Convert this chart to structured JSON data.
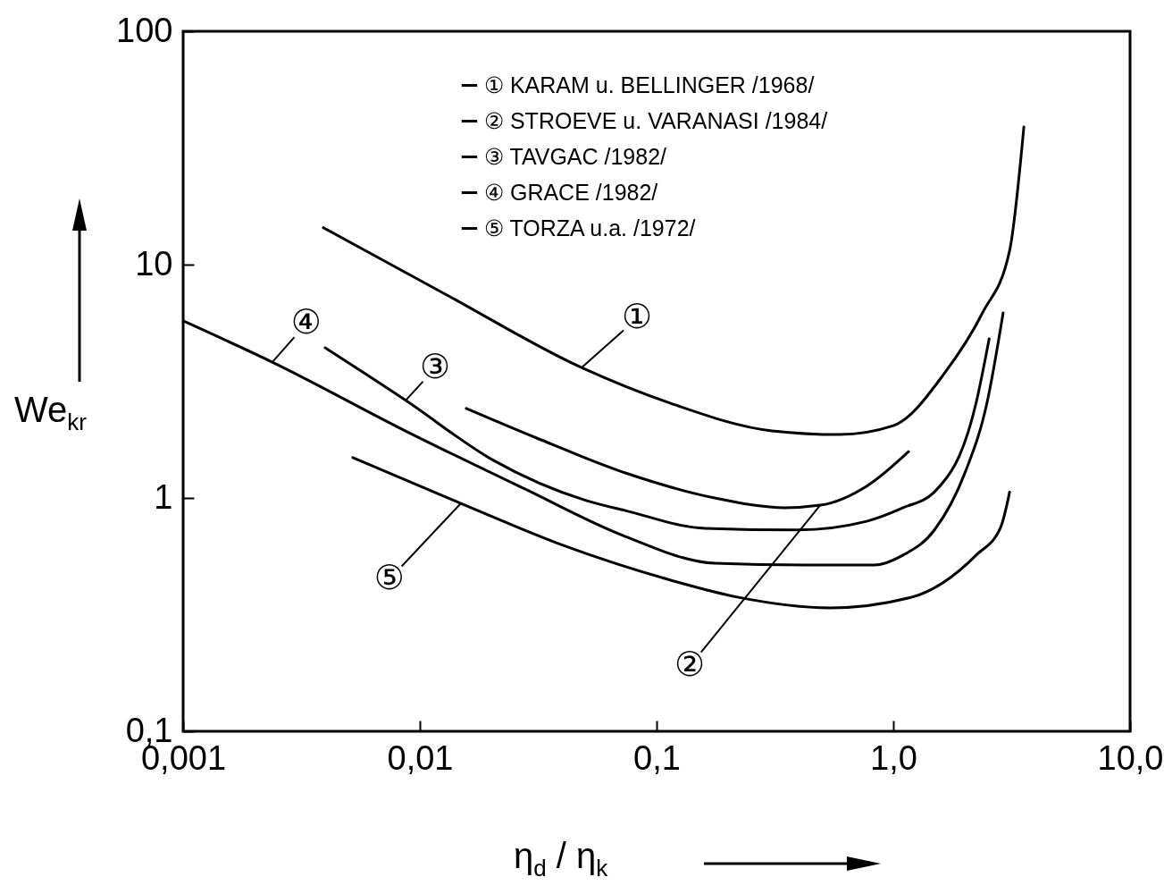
{
  "chart_data": {
    "type": "line",
    "xlabel": "η$_{d}$ / η$_{k}$",
    "ylabel": "We$_{kr}$",
    "log": "xy",
    "grid": false,
    "legend": "top right",
    "line_style": "solid",
    "marker": "none",
    "xlim": [
      0.001,
      10
    ],
    "xticks": [
      {
        "value": 0.001,
        "label": "0,001"
      },
      {
        "value": 0.01,
        "label": "0,01"
      },
      {
        "value": 0.1,
        "label": "0,1"
      },
      {
        "value": 1,
        "label": "1,0"
      },
      {
        "value": 10,
        "label": "10,0"
      }
    ],
    "ylim": [
      0.1,
      100
    ],
    "yticks": [
      {
        "value": 0.1,
        "label": "0,1"
      },
      1,
      10,
      100
    ],
    "series": [
      {
        "name": "① KARAM u. BELLINGER /1968/",
        "color": "#000000",
        "x": [
          0.00391,
          0.013,
          0.0482,
          0.114,
          0.307,
          0.594,
          1.0,
          1.64,
          2.38,
          3.1,
          3.56
        ],
        "values": [
          14.4,
          7.41,
          3.62,
          2.55,
          1.94,
          1.87,
          2.04,
          3.41,
          6.21,
          11.5,
          38.9
        ]
      },
      {
        "name": "② STROEVE u. VARANASI /1984/",
        "color": "#000000",
        "x": [
          0.0157,
          0.031,
          0.0738,
          0.176,
          0.349,
          0.491,
          0.778,
          1.16
        ],
        "values": [
          2.42,
          1.81,
          1.28,
          1.0,
          0.908,
          0.931,
          1.13,
          1.58
        ]
      },
      {
        "name": "③ TAVGAC /1982/",
        "color": "#000000",
        "x": [
          0.00398,
          0.00871,
          0.0202,
          0.0504,
          0.0738,
          0.16,
          0.395,
          0.771,
          1.1,
          1.49,
          2.24,
          2.54
        ],
        "values": [
          4.4,
          2.62,
          1.46,
          0.975,
          0.883,
          0.741,
          0.729,
          0.794,
          0.908,
          1.06,
          2.57,
          4.81
        ]
      },
      {
        "name": "④ GRACE /1982/",
        "color": "#000000",
        "x": [
          0.001,
          0.00238,
          0.00885,
          0.0274,
          0.0738,
          0.176,
          0.42,
          0.834,
          1.1,
          1.49,
          2.0,
          2.49,
          2.91
        ],
        "values": [
          5.74,
          3.82,
          1.92,
          1.1,
          0.684,
          0.525,
          0.516,
          0.516,
          0.569,
          0.728,
          1.27,
          2.57,
          6.21
        ]
      },
      {
        "name": "⑤ TORZA u.a. /1972/",
        "color": "#000000",
        "x": [
          0.00521,
          0.0149,
          0.0402,
          0.114,
          0.219,
          0.54,
          1.2,
          2.24,
          2.84,
          3.1
        ],
        "values": [
          1.49,
          0.948,
          0.627,
          0.445,
          0.376,
          0.338,
          0.376,
          0.569,
          0.748,
          1.06
        ]
      }
    ],
    "annotations": [
      {
        "text": "①",
        "x": 0.0482,
        "y": 3.62
      },
      {
        "text": "②",
        "x": 0.491,
        "y": 0.931
      },
      {
        "text": "③",
        "x": 0.00871,
        "y": 2.62
      },
      {
        "text": "④",
        "x": 0.00238,
        "y": 3.82
      },
      {
        "text": "⑤",
        "x": 0.0149,
        "y": 0.948
      }
    ]
  }
}
